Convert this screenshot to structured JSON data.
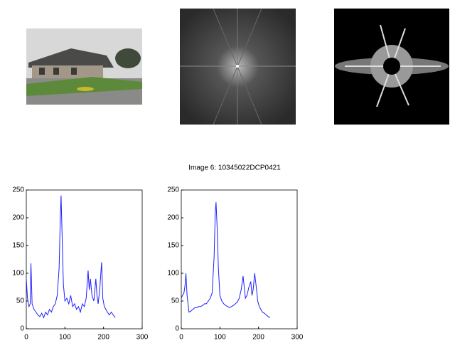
{
  "title": "Image 6: 10345022DCP0421",
  "chart_data": [
    {
      "type": "line",
      "x": [
        0,
        3,
        7,
        10,
        12,
        15,
        20,
        25,
        30,
        35,
        40,
        45,
        50,
        55,
        60,
        65,
        70,
        75,
        80,
        85,
        88,
        90,
        93,
        96,
        100,
        105,
        110,
        115,
        120,
        125,
        130,
        135,
        140,
        145,
        150,
        155,
        160,
        163,
        166,
        170,
        175,
        180,
        183,
        186,
        190,
        195,
        198,
        202,
        206,
        210,
        215,
        220,
        225,
        230
      ],
      "series": [
        {
          "color": "#1f1fff",
          "values": [
            90,
            55,
            40,
            45,
            118,
            45,
            35,
            30,
            25,
            22,
            28,
            20,
            30,
            25,
            35,
            30,
            40,
            45,
            60,
            110,
            200,
            240,
            160,
            80,
            50,
            55,
            45,
            60,
            40,
            45,
            35,
            40,
            30,
            45,
            40,
            55,
            105,
            70,
            90,
            60,
            50,
            90,
            60,
            45,
            70,
            120,
            55,
            40,
            35,
            30,
            25,
            30,
            25,
            20
          ]
        }
      ],
      "xlim": [
        0,
        300
      ],
      "ylim": [
        0,
        250
      ],
      "xticks": [
        0,
        100,
        200,
        300
      ],
      "yticks": [
        0,
        50,
        100,
        150,
        200,
        250
      ]
    },
    {
      "type": "line",
      "x": [
        0,
        3,
        7,
        10,
        12,
        15,
        20,
        25,
        30,
        35,
        40,
        45,
        50,
        55,
        60,
        65,
        70,
        75,
        80,
        85,
        88,
        90,
        93,
        96,
        100,
        105,
        110,
        115,
        120,
        125,
        130,
        135,
        140,
        145,
        150,
        155,
        160,
        163,
        166,
        170,
        175,
        180,
        183,
        186,
        190,
        195,
        198,
        202,
        206,
        210,
        215,
        220,
        225,
        230
      ],
      "series": [
        {
          "color": "#1f1fff",
          "values": [
            55,
            60,
            65,
            80,
            100,
            60,
            30,
            32,
            35,
            38,
            38,
            40,
            40,
            42,
            45,
            45,
            50,
            55,
            65,
            130,
            210,
            228,
            180,
            110,
            60,
            50,
            45,
            42,
            40,
            38,
            40,
            42,
            45,
            48,
            55,
            70,
            95,
            75,
            55,
            60,
            75,
            85,
            60,
            70,
            100,
            70,
            50,
            40,
            35,
            30,
            28,
            25,
            22,
            20
          ]
        }
      ],
      "xlim": [
        0,
        300
      ],
      "ylim": [
        0,
        250
      ],
      "xticks": [
        0,
        100,
        200,
        300
      ],
      "yticks": [
        0,
        50,
        100,
        150,
        200,
        250
      ]
    }
  ]
}
